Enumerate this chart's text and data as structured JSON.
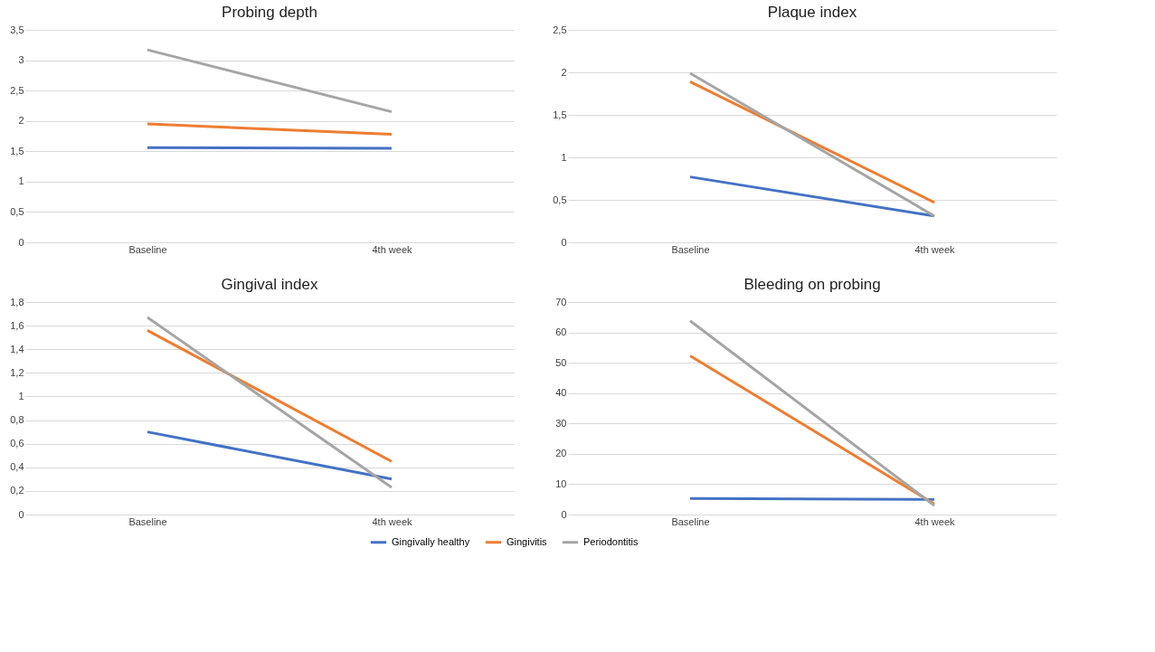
{
  "chart_data": [
    {
      "type": "line",
      "title": "Probing depth",
      "categories": [
        "Baseline",
        "4th week"
      ],
      "ylim": [
        0,
        3.5
      ],
      "yticks": [
        0,
        {
          "value": 0.5,
          "label": "0,5"
        },
        1,
        {
          "value": 1.5,
          "label": "1,5"
        },
        2,
        {
          "value": 2.5,
          "label": "2,5"
        },
        3,
        {
          "value": 3.5,
          "label": "3,5"
        }
      ],
      "grid": "y",
      "marker": "none",
      "series": [
        {
          "color": "#4472c4",
          "values": [
            1.56,
            1.55
          ]
        },
        {
          "color": "#ed7d31",
          "values": [
            1.95,
            1.78
          ]
        },
        {
          "color": "#a5a5a5",
          "values": [
            3.17,
            2.15
          ]
        }
      ]
    },
    {
      "type": "line",
      "title": "Plaque index",
      "categories": [
        "Baseline",
        "4th week"
      ],
      "ylim": [
        0,
        2.5
      ],
      "yticks": [
        0,
        {
          "value": 0.5,
          "label": "0,5"
        },
        1,
        {
          "value": 1.5,
          "label": "1,5"
        },
        2,
        {
          "value": 2.5,
          "label": "2,5"
        }
      ],
      "grid": "y",
      "marker": "none",
      "series": [
        {
          "color": "#4472c4",
          "values": [
            0.77,
            0.31
          ]
        },
        {
          "color": "#ed7d31",
          "values": [
            1.89,
            0.47
          ]
        },
        {
          "color": "#a5a5a5",
          "values": [
            1.99,
            0.31
          ]
        }
      ]
    },
    {
      "type": "line",
      "title": "Gingival index",
      "categories": [
        "Baseline",
        "4th week"
      ],
      "ylim": [
        0,
        1.8
      ],
      "yticks": [
        0,
        {
          "value": 0.2,
          "label": "0,2"
        },
        {
          "value": 0.4,
          "label": "0,4"
        },
        {
          "value": 0.6,
          "label": "0,6"
        },
        {
          "value": 0.8,
          "label": "0,8"
        },
        1,
        {
          "value": 1.2,
          "label": "1,2"
        },
        {
          "value": 1.4,
          "label": "1,4"
        },
        {
          "value": 1.6,
          "label": "1,6"
        },
        {
          "value": 1.8,
          "label": "1,8"
        }
      ],
      "grid": "y",
      "marker": "none",
      "series": [
        {
          "color": "#4472c4",
          "values": [
            0.7,
            0.3
          ]
        },
        {
          "color": "#ed7d31",
          "values": [
            1.56,
            0.45
          ]
        },
        {
          "color": "#a5a5a5",
          "values": [
            1.67,
            0.23
          ]
        }
      ]
    },
    {
      "type": "line",
      "title": "Bleeding on probing",
      "categories": [
        "Baseline",
        "4th week"
      ],
      "ylim": [
        0,
        70
      ],
      "yticks": [
        0,
        10,
        20,
        30,
        40,
        50,
        60,
        70
      ],
      "grid": "y",
      "legend": "bottom",
      "marker": "none",
      "series": [
        {
          "name": "Gingivally healthy",
          "color": "#4472c4",
          "values": [
            5.3,
            5.0
          ]
        },
        {
          "name": "Gingivitis",
          "color": "#ed7d31",
          "values": [
            52.3,
            3.5
          ]
        },
        {
          "name": "Periodontitis",
          "color": "#a5a5a5",
          "values": [
            63.8,
            3.0
          ]
        }
      ]
    }
  ]
}
